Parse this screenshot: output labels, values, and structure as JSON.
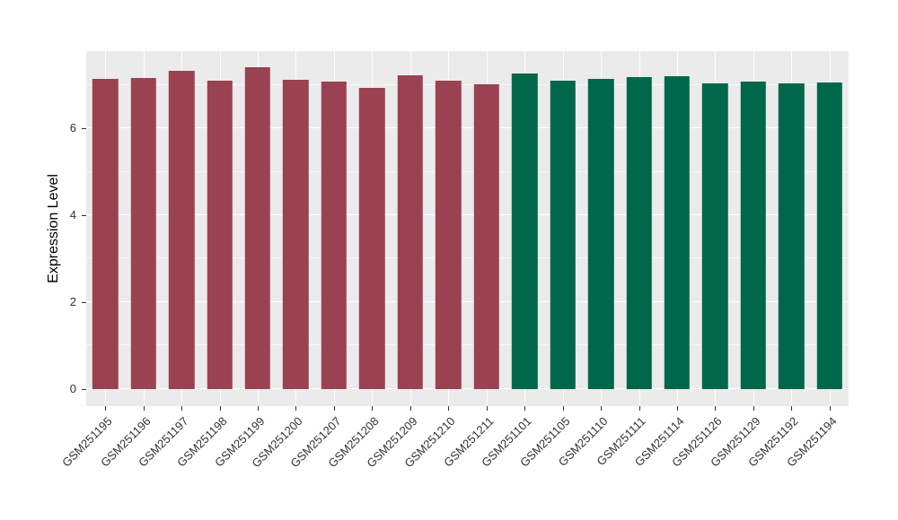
{
  "figure": {
    "background": "#ffffff",
    "panel_background": "#ebebeb",
    "grid_color": "#ffffff",
    "axis_text_color": "#333333",
    "axis_title_color": "#000000",
    "tick_mark_color": "#333333"
  },
  "chart_data": {
    "type": "bar",
    "title": "",
    "xlabel": "",
    "ylabel": "Expression Level",
    "ylim": [
      0,
      7.78
    ],
    "yticks_major": [
      0,
      2,
      4,
      6
    ],
    "yticks_minor": [
      1,
      3,
      5,
      7
    ],
    "grid": "on",
    "legend_position": "none",
    "x_tick_rotation_deg": 45,
    "categories": [
      "GSM251195",
      "GSM251196",
      "GSM251197",
      "GSM251198",
      "GSM251199",
      "GSM251200",
      "GSM251207",
      "GSM251208",
      "GSM251209",
      "GSM251210",
      "GSM251211",
      "GSM251101",
      "GSM251105",
      "GSM251110",
      "GSM251111",
      "GSM251114",
      "GSM251126",
      "GSM251129",
      "GSM251192",
      "GSM251194"
    ],
    "values": [
      7.13,
      7.15,
      7.32,
      7.1,
      7.41,
      7.12,
      7.08,
      6.93,
      7.22,
      7.1,
      7.01,
      7.26,
      7.1,
      7.13,
      7.17,
      7.2,
      7.03,
      7.08,
      7.04,
      7.06
    ],
    "groups": [
      "groupA",
      "groupA",
      "groupA",
      "groupA",
      "groupA",
      "groupA",
      "groupA",
      "groupA",
      "groupA",
      "groupA",
      "groupA",
      "groupB",
      "groupB",
      "groupB",
      "groupB",
      "groupB",
      "groupB",
      "groupB",
      "groupB",
      "groupB"
    ],
    "group_colors": {
      "groupA": "#9a4252",
      "groupB": "#00674a"
    }
  }
}
